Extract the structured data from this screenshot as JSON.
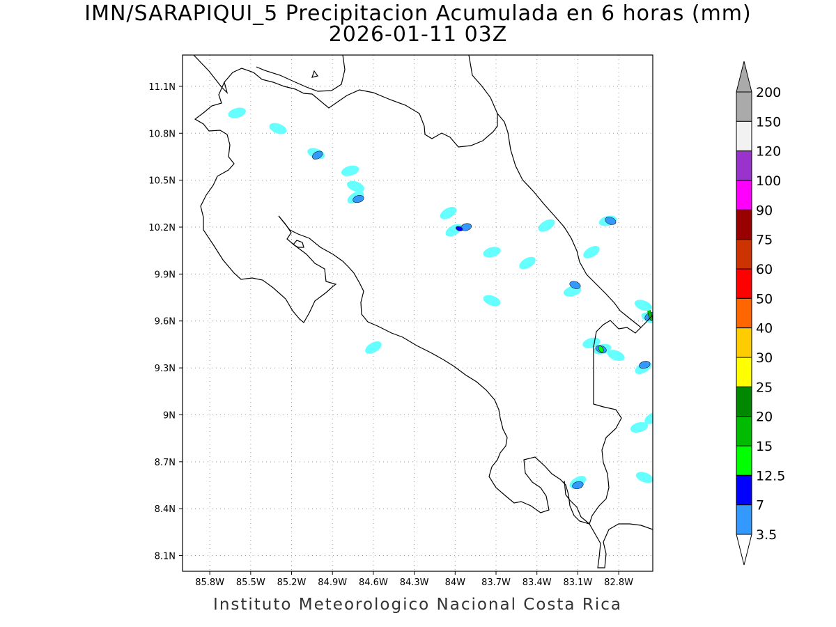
{
  "title": {
    "line1": "IMN/SARAPIQUI_5 Precipitacion Acumulada en 6 horas (mm)",
    "line2": "2026-01-11 03Z"
  },
  "footer": "Instituto Meteorologico Nacional Costa Rica",
  "map": {
    "lon_range": [
      -86.0,
      -82.55
    ],
    "lat_range": [
      8.0,
      11.3
    ],
    "lon_ticks": [
      {
        "value": -85.8,
        "label": "85.8W"
      },
      {
        "value": -85.5,
        "label": "85.5W"
      },
      {
        "value": -85.2,
        "label": "85.2W"
      },
      {
        "value": -84.9,
        "label": "84.9W"
      },
      {
        "value": -84.6,
        "label": "84.6W"
      },
      {
        "value": -84.3,
        "label": "84.3W"
      },
      {
        "value": -84.0,
        "label": "84W"
      },
      {
        "value": -83.7,
        "label": "83.7W"
      },
      {
        "value": -83.4,
        "label": "83.4W"
      },
      {
        "value": -83.1,
        "label": "83.1W"
      },
      {
        "value": -82.8,
        "label": "82.8W"
      }
    ],
    "lat_ticks": [
      {
        "value": 11.1,
        "label": "11.1N"
      },
      {
        "value": 10.8,
        "label": "10.8N"
      },
      {
        "value": 10.5,
        "label": "10.5N"
      },
      {
        "value": 10.2,
        "label": "10.2N"
      },
      {
        "value": 9.9,
        "label": "9.9N"
      },
      {
        "value": 9.6,
        "label": "9.6N"
      },
      {
        "value": 9.3,
        "label": "9.3N"
      },
      {
        "value": 9.0,
        "label": "9N"
      },
      {
        "value": 8.7,
        "label": "8.7N"
      },
      {
        "value": 8.4,
        "label": "8.4N"
      },
      {
        "value": 8.1,
        "label": "8.1N"
      }
    ],
    "grid": "dotted",
    "coast_color": "#000000",
    "precip_areas": [
      {
        "lon": -84.01,
        "lat": 10.18,
        "level": "3.5"
      },
      {
        "lon": -83.92,
        "lat": 10.2,
        "level": "7"
      },
      {
        "lon": -83.97,
        "lat": 10.19,
        "level": "12.5"
      },
      {
        "lon": -84.05,
        "lat": 10.29,
        "level": "3.5"
      },
      {
        "lon": -83.73,
        "lat": 10.04,
        "level": "3.5"
      },
      {
        "lon": -83.73,
        "lat": 9.73,
        "level": "3.5"
      },
      {
        "lon": -83.47,
        "lat": 9.97,
        "level": "3.5"
      },
      {
        "lon": -83.14,
        "lat": 9.79,
        "level": "3.5"
      },
      {
        "lon": -83.12,
        "lat": 9.83,
        "level": "7"
      },
      {
        "lon": -83.33,
        "lat": 10.21,
        "level": "3.5"
      },
      {
        "lon": -82.88,
        "lat": 10.24,
        "level": "3.5"
      },
      {
        "lon": -82.86,
        "lat": 10.24,
        "level": "7"
      },
      {
        "lon": -83.0,
        "lat": 10.04,
        "level": "3.5"
      },
      {
        "lon": -84.77,
        "lat": 10.56,
        "level": "3.5"
      },
      {
        "lon": -84.73,
        "lat": 10.46,
        "level": "3.5"
      },
      {
        "lon": -84.73,
        "lat": 10.39,
        "level": "3.5"
      },
      {
        "lon": -84.71,
        "lat": 10.38,
        "level": "7"
      },
      {
        "lon": -85.02,
        "lat": 10.67,
        "level": "3.5"
      },
      {
        "lon": -85.01,
        "lat": 10.66,
        "level": "7"
      },
      {
        "lon": -85.6,
        "lat": 10.93,
        "level": "3.5"
      },
      {
        "lon": -85.3,
        "lat": 10.83,
        "level": "3.5"
      },
      {
        "lon": -84.6,
        "lat": 9.43,
        "level": "3.5"
      },
      {
        "lon": -82.92,
        "lat": 9.42,
        "level": "3.5"
      },
      {
        "lon": -82.93,
        "lat": 9.42,
        "level": "7"
      },
      {
        "lon": -82.93,
        "lat": 9.42,
        "level": "15"
      },
      {
        "lon": -83.0,
        "lat": 9.46,
        "level": "3.5"
      },
      {
        "lon": -82.82,
        "lat": 9.38,
        "level": "3.5"
      },
      {
        "lon": -82.62,
        "lat": 9.3,
        "level": "3.5"
      },
      {
        "lon": -82.61,
        "lat": 9.32,
        "level": "7"
      },
      {
        "lon": -82.57,
        "lat": 9.62,
        "level": "3.5"
      },
      {
        "lon": -82.57,
        "lat": 9.63,
        "level": "7"
      },
      {
        "lon": -82.57,
        "lat": 9.64,
        "level": "20"
      },
      {
        "lon": -82.62,
        "lat": 9.7,
        "level": "3.5"
      },
      {
        "lon": -82.55,
        "lat": 8.98,
        "level": "3.5"
      },
      {
        "lon": -82.65,
        "lat": 8.92,
        "level": "3.5"
      },
      {
        "lon": -82.61,
        "lat": 8.6,
        "level": "3.5"
      },
      {
        "lon": -83.1,
        "lat": 8.57,
        "level": "3.5"
      },
      {
        "lon": -83.1,
        "lat": 8.55,
        "level": "7"
      }
    ]
  },
  "colorbar": {
    "levels": [
      {
        "label": "200",
        "color": "#aaaaaa"
      },
      {
        "label": "150",
        "color": "#f2f2f2"
      },
      {
        "label": "120",
        "color": "#9933cc"
      },
      {
        "label": "100",
        "color": "#ff00ff"
      },
      {
        "label": "90",
        "color": "#990000"
      },
      {
        "label": "75",
        "color": "#cc3300"
      },
      {
        "label": "60",
        "color": "#ff0000"
      },
      {
        "label": "50",
        "color": "#ff6600"
      },
      {
        "label": "40",
        "color": "#ffcc00"
      },
      {
        "label": "30",
        "color": "#ffff00"
      },
      {
        "label": "25",
        "color": "#008800"
      },
      {
        "label": "20",
        "color": "#00bb00"
      },
      {
        "label": "15",
        "color": "#00ff00"
      },
      {
        "label": "12.5",
        "color": "#0000ff"
      },
      {
        "label": "7",
        "color": "#3399ff"
      },
      {
        "label": "3.5",
        "color": "#66ffff"
      }
    ],
    "bottom_arrow_color": "#ffffff",
    "top_arrow_color": "#aaaaaa"
  }
}
